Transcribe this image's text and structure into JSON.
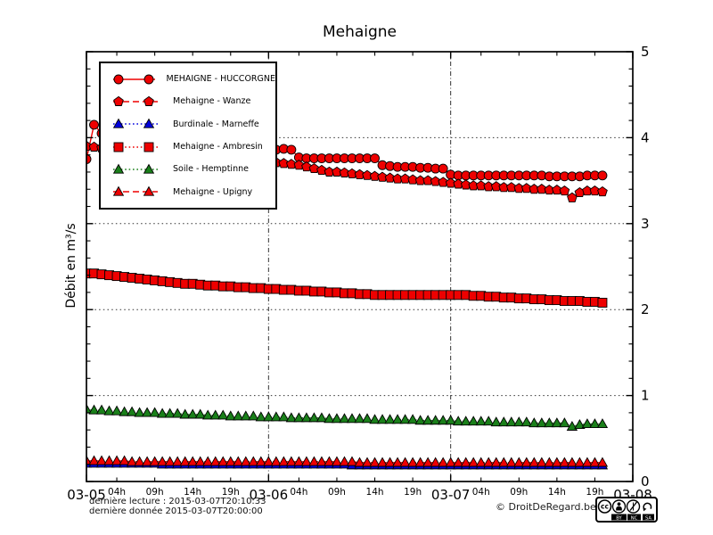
{
  "title": "Mehaigne",
  "y_axis_label": "Débit en m³/s",
  "footer": {
    "last_read": "dernière lecture : 2015-03-07T20:10:33",
    "last_data": "dernière donnée  2015-03-07T20:00:00",
    "copyright": "© DroitDeRegard.be",
    "license_cc": "cc",
    "license_labels": [
      "BY",
      "NC",
      "SA"
    ]
  },
  "chart_data": {
    "type": "line",
    "title": "Mehaigne",
    "xlabel": "",
    "ylabel": "Débit en m³/s",
    "ylim": [
      0,
      5
    ],
    "y_major_ticks": [
      0,
      1,
      2,
      3,
      4,
      5
    ],
    "y_minor_step": 0.2,
    "ygrid": [
      1,
      2,
      3,
      4
    ],
    "grid": "on",
    "legend_position": "upper-left",
    "xlim_hours": [
      0,
      72
    ],
    "x_unit": "hours since 2015-03-05 00:00",
    "x_step_hours": 1,
    "day_tick_labels": [
      "03-05",
      "03-06",
      "03-07",
      "03-08"
    ],
    "day_tick_hours": [
      0,
      24,
      48,
      72
    ],
    "hour_tick_labels": [
      "04h",
      "09h",
      "14h",
      "19h"
    ],
    "hour_ticks_per_day": [
      4,
      9,
      14,
      19
    ],
    "day_gridlines_hours": [
      24,
      48
    ],
    "series": [
      {
        "name": "huccorgne",
        "label": "MEHAIGNE - HUCCORGNE",
        "color": "#ee0000",
        "marker": "circle",
        "line_style": "solid",
        "values": [
          3.75,
          4.15,
          4.05,
          3.98,
          3.95,
          3.92,
          3.9,
          3.88,
          3.86,
          3.84,
          3.82,
          3.8,
          3.78,
          3.76,
          3.74,
          3.72,
          3.7,
          3.68,
          3.66,
          3.64,
          3.62,
          3.61,
          3.6,
          3.59,
          3.58,
          3.86,
          3.87,
          3.86,
          3.77,
          3.76,
          3.76,
          3.76,
          3.76,
          3.76,
          3.76,
          3.76,
          3.76,
          3.76,
          3.76,
          3.68,
          3.67,
          3.66,
          3.66,
          3.66,
          3.65,
          3.65,
          3.64,
          3.64,
          3.57,
          3.56,
          3.56,
          3.56,
          3.56,
          3.56,
          3.56,
          3.56,
          3.56,
          3.56,
          3.56,
          3.56,
          3.56,
          3.55,
          3.55,
          3.55,
          3.55,
          3.55,
          3.56,
          3.56,
          3.56
        ]
      },
      {
        "name": "wanze",
        "label": "Mehaigne - Wanze",
        "color": "#ee0000",
        "marker": "pentagon",
        "line_style": "dashed",
        "values": [
          3.9,
          3.89,
          3.88,
          3.87,
          3.86,
          3.85,
          3.84,
          3.84,
          3.83,
          3.82,
          3.81,
          3.8,
          3.79,
          3.78,
          3.77,
          3.77,
          3.76,
          3.75,
          3.75,
          3.74,
          3.74,
          3.73,
          3.73,
          3.72,
          3.72,
          3.71,
          3.7,
          3.69,
          3.68,
          3.66,
          3.64,
          3.62,
          3.6,
          3.6,
          3.59,
          3.58,
          3.57,
          3.56,
          3.55,
          3.54,
          3.53,
          3.52,
          3.52,
          3.51,
          3.5,
          3.5,
          3.49,
          3.48,
          3.47,
          3.46,
          3.45,
          3.44,
          3.44,
          3.43,
          3.43,
          3.42,
          3.42,
          3.41,
          3.41,
          3.4,
          3.4,
          3.39,
          3.39,
          3.38,
          3.3,
          3.36,
          3.38,
          3.38,
          3.37
        ]
      },
      {
        "name": "marneffe",
        "label": "Burdinale - Marneffe",
        "color": "#0000dd",
        "marker": "triangle-up",
        "line_style": "dotted",
        "values": [
          0.21,
          0.21,
          0.21,
          0.21,
          0.21,
          0.21,
          0.21,
          0.21,
          0.21,
          0.21,
          0.2,
          0.2,
          0.2,
          0.2,
          0.2,
          0.2,
          0.2,
          0.2,
          0.2,
          0.2,
          0.2,
          0.2,
          0.2,
          0.2,
          0.2,
          0.2,
          0.2,
          0.2,
          0.2,
          0.2,
          0.2,
          0.2,
          0.2,
          0.2,
          0.2,
          0.19,
          0.19,
          0.19,
          0.19,
          0.19,
          0.19,
          0.19,
          0.19,
          0.19,
          0.19,
          0.19,
          0.19,
          0.19,
          0.19,
          0.19,
          0.19,
          0.19,
          0.19,
          0.19,
          0.19,
          0.19,
          0.19,
          0.19,
          0.19,
          0.19,
          0.19,
          0.19,
          0.19,
          0.19,
          0.19,
          0.19,
          0.19,
          0.19,
          0.19
        ]
      },
      {
        "name": "ambresin",
        "label": "Mehaigne - Ambresin",
        "color": "#ee0000",
        "marker": "square",
        "line_style": "dotted",
        "values": [
          2.42,
          2.42,
          2.41,
          2.4,
          2.39,
          2.38,
          2.37,
          2.36,
          2.35,
          2.34,
          2.33,
          2.32,
          2.31,
          2.3,
          2.3,
          2.29,
          2.28,
          2.28,
          2.27,
          2.27,
          2.26,
          2.26,
          2.25,
          2.25,
          2.24,
          2.24,
          2.23,
          2.23,
          2.22,
          2.22,
          2.21,
          2.21,
          2.2,
          2.2,
          2.19,
          2.19,
          2.18,
          2.18,
          2.17,
          2.17,
          2.17,
          2.17,
          2.17,
          2.17,
          2.17,
          2.17,
          2.17,
          2.17,
          2.17,
          2.17,
          2.17,
          2.16,
          2.16,
          2.15,
          2.15,
          2.14,
          2.14,
          2.13,
          2.13,
          2.12,
          2.12,
          2.11,
          2.11,
          2.1,
          2.1,
          2.1,
          2.09,
          2.09,
          2.08
        ]
      },
      {
        "name": "hemptinne",
        "label": "Soile - Hemptinne",
        "color": "#1a801a",
        "marker": "triangle-up",
        "line_style": "dotted",
        "values": [
          0.84,
          0.83,
          0.83,
          0.82,
          0.82,
          0.81,
          0.81,
          0.8,
          0.8,
          0.8,
          0.79,
          0.79,
          0.79,
          0.78,
          0.78,
          0.78,
          0.77,
          0.77,
          0.77,
          0.76,
          0.76,
          0.76,
          0.76,
          0.75,
          0.75,
          0.75,
          0.75,
          0.74,
          0.74,
          0.74,
          0.74,
          0.74,
          0.73,
          0.73,
          0.73,
          0.73,
          0.73,
          0.73,
          0.72,
          0.72,
          0.72,
          0.72,
          0.72,
          0.72,
          0.71,
          0.71,
          0.71,
          0.71,
          0.71,
          0.7,
          0.7,
          0.7,
          0.7,
          0.7,
          0.69,
          0.69,
          0.69,
          0.69,
          0.69,
          0.68,
          0.68,
          0.68,
          0.68,
          0.68,
          0.64,
          0.66,
          0.67,
          0.67,
          0.67
        ]
      },
      {
        "name": "upigny",
        "label": "Mehaigne - Upigny",
        "color": "#ee0000",
        "marker": "triangle-up",
        "line_style": "dashed",
        "values": [
          0.24,
          0.24,
          0.24,
          0.24,
          0.24,
          0.24,
          0.23,
          0.23,
          0.23,
          0.23,
          0.23,
          0.23,
          0.23,
          0.23,
          0.23,
          0.23,
          0.23,
          0.23,
          0.23,
          0.23,
          0.23,
          0.23,
          0.23,
          0.23,
          0.23,
          0.23,
          0.23,
          0.23,
          0.23,
          0.23,
          0.23,
          0.23,
          0.23,
          0.23,
          0.23,
          0.23,
          0.22,
          0.22,
          0.22,
          0.22,
          0.22,
          0.22,
          0.22,
          0.22,
          0.22,
          0.22,
          0.22,
          0.22,
          0.22,
          0.22,
          0.22,
          0.22,
          0.22,
          0.22,
          0.22,
          0.22,
          0.22,
          0.22,
          0.22,
          0.22,
          0.22,
          0.22,
          0.22,
          0.22,
          0.22,
          0.22,
          0.22,
          0.22,
          0.22
        ]
      }
    ]
  }
}
